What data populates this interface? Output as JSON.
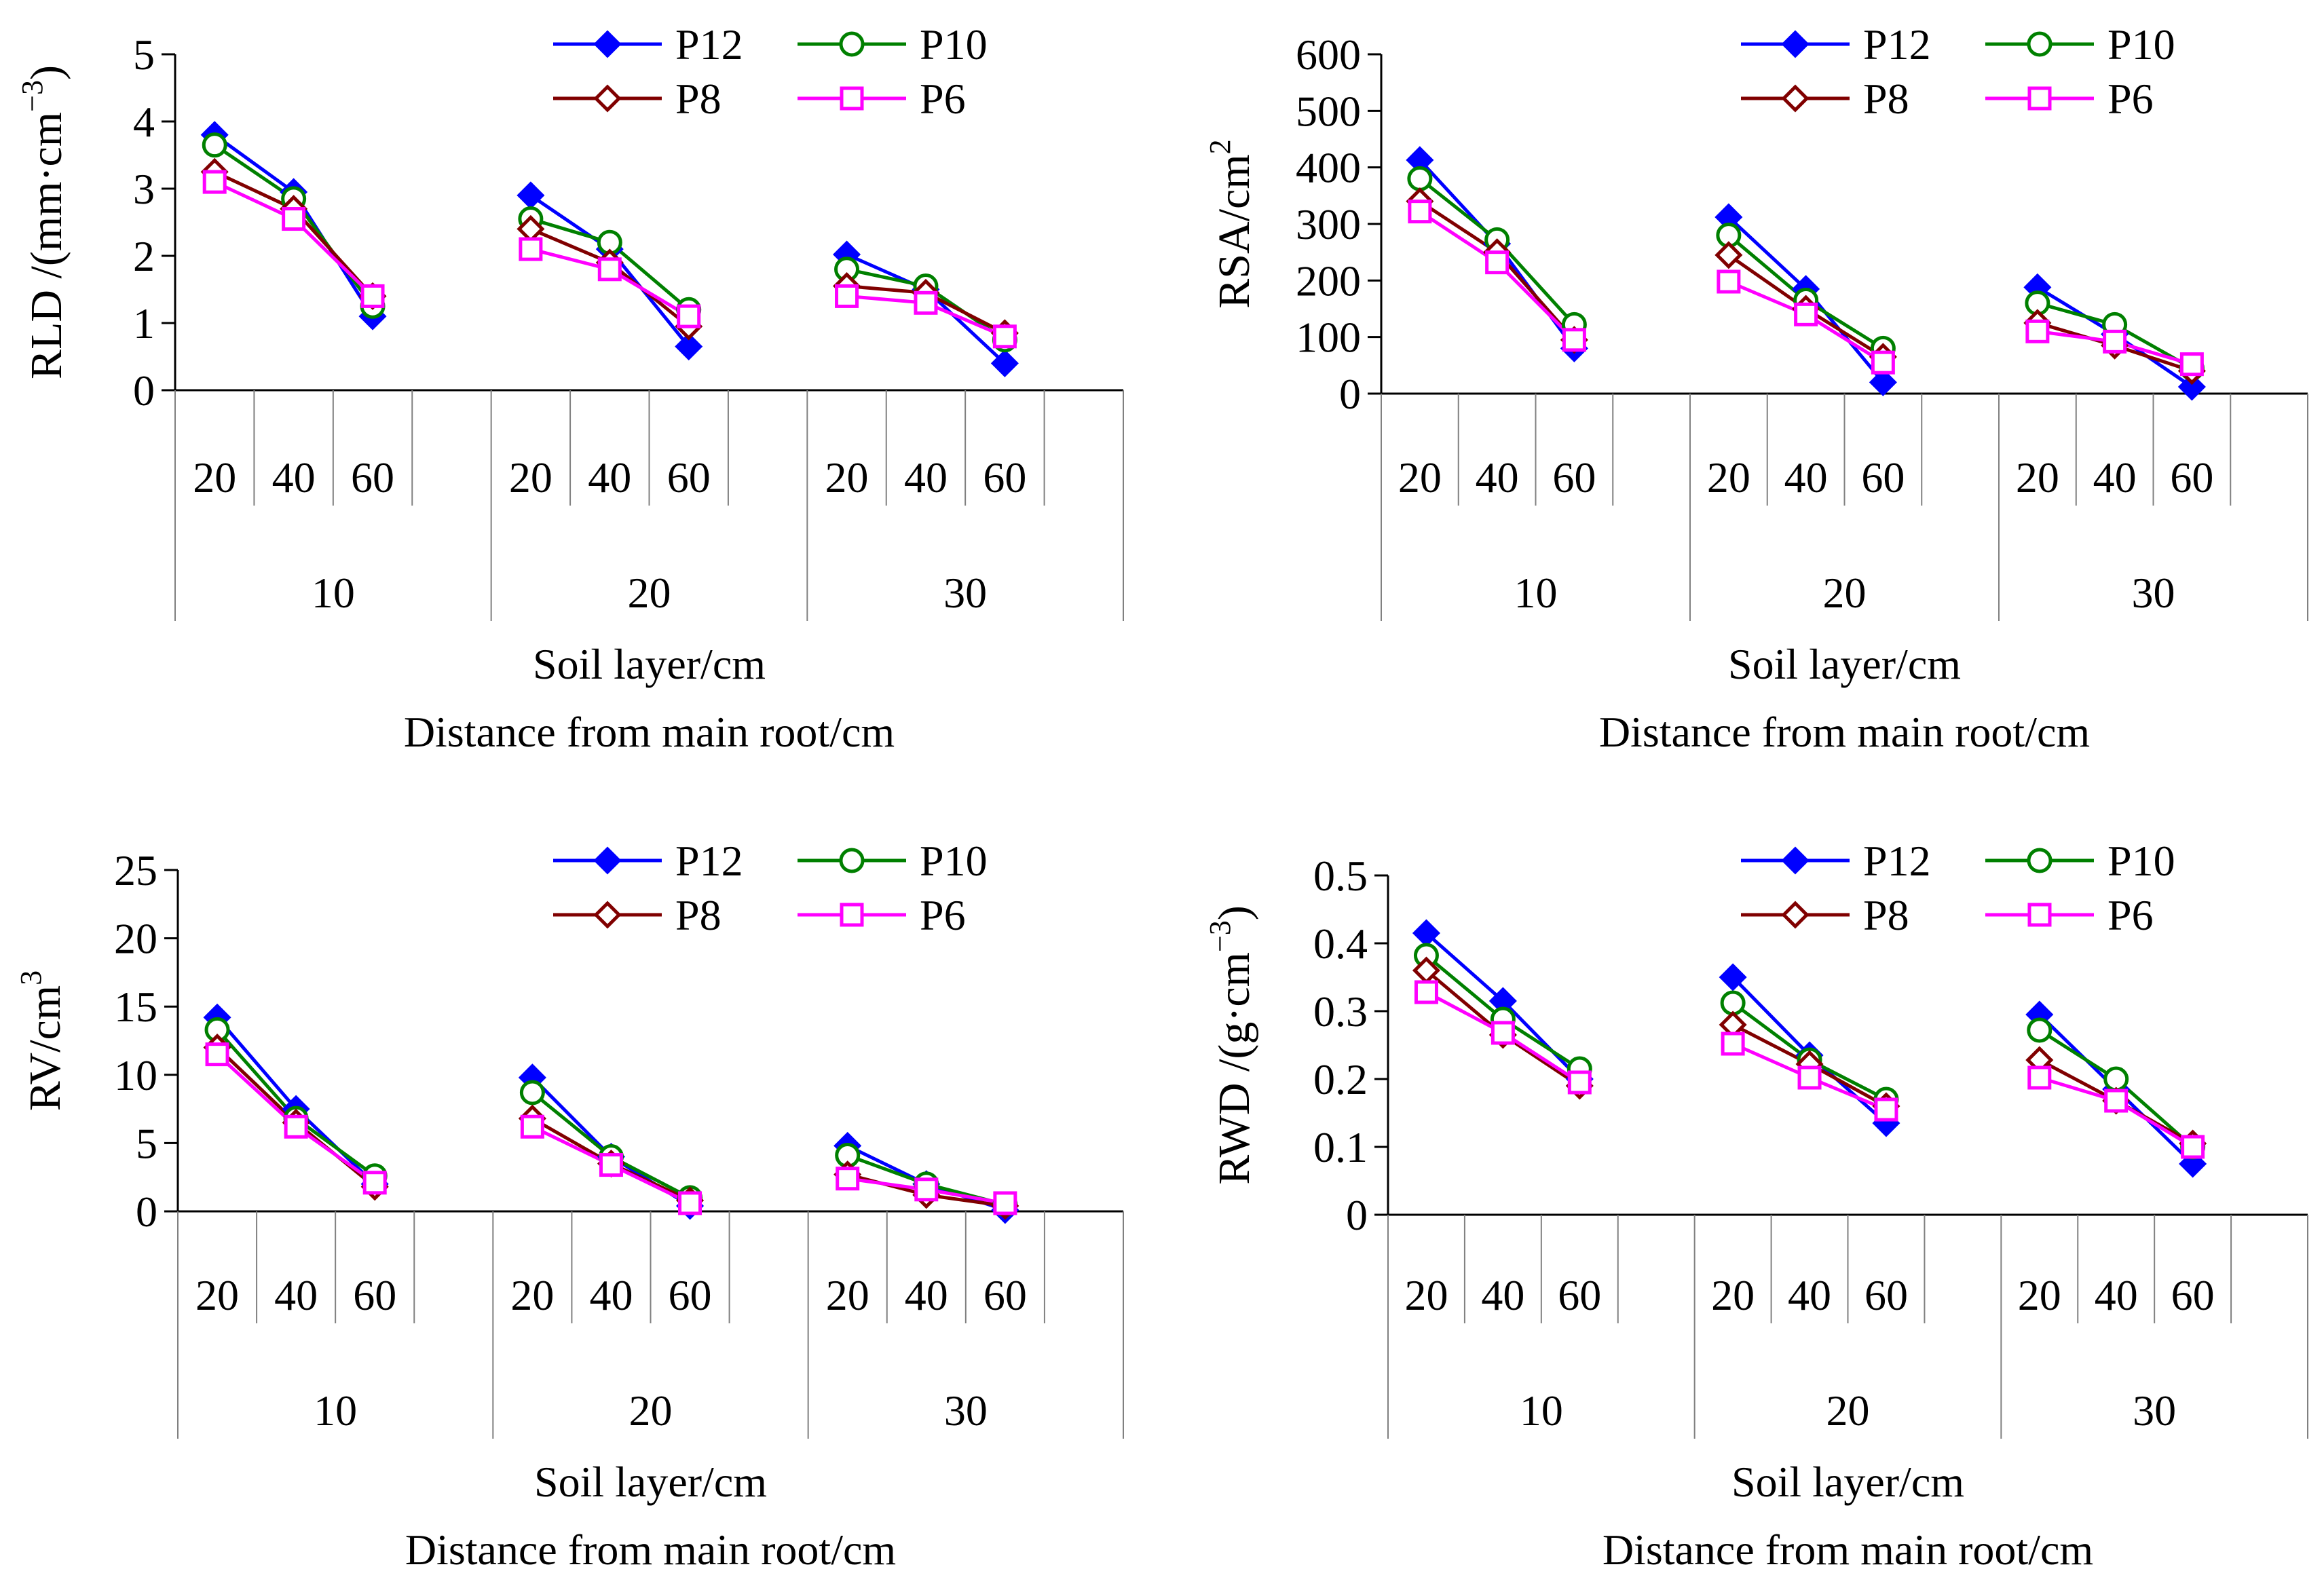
{
  "figure": {
    "panels_order": [
      "rld",
      "rsa",
      "rv",
      "rwd"
    ]
  },
  "chart_data": [
    {
      "id": "rld",
      "type": "line",
      "ylabel": "RLD /(mm·cm⁻³)",
      "ylabel_parts": {
        "main": "RLD /(mm·cm",
        "sup": "−3",
        "end": ")"
      },
      "ylim": [
        0,
        5
      ],
      "yticks": [
        0,
        1,
        2,
        3,
        4,
        5
      ],
      "ytick_labels": [
        "0",
        "1",
        "2",
        "3",
        "4",
        "5"
      ],
      "groups": [
        "10",
        "20",
        "30"
      ],
      "categories": [
        "20",
        "40",
        "60"
      ],
      "xlabel_1": "Soil layer/cm",
      "xlabel_2": "Distance from main root/cm",
      "series": [
        {
          "name": "P12",
          "values": [
            [
              3.8,
              2.95,
              1.1
            ],
            [
              2.9,
              2.1,
              0.65
            ],
            [
              2.02,
              1.5,
              0.4
            ]
          ]
        },
        {
          "name": "P10",
          "values": [
            [
              3.65,
              2.85,
              1.25
            ],
            [
              2.55,
              2.2,
              1.2
            ],
            [
              1.8,
              1.55,
              0.75
            ]
          ]
        },
        {
          "name": "P8",
          "values": [
            [
              3.25,
              2.7,
              1.4
            ],
            [
              2.4,
              1.9,
              0.95
            ],
            [
              1.55,
              1.45,
              0.85
            ]
          ]
        },
        {
          "name": "P6",
          "values": [
            [
              3.1,
              2.55,
              1.4
            ],
            [
              2.1,
              1.8,
              1.1
            ],
            [
              1.4,
              1.3,
              0.8
            ]
          ]
        }
      ]
    },
    {
      "id": "rsa",
      "type": "line",
      "ylabel": "RSA/cm²",
      "ylabel_parts": {
        "main": "RSA/cm",
        "sup": "2",
        "end": ""
      },
      "ylim": [
        0,
        600
      ],
      "yticks": [
        0,
        100,
        200,
        300,
        400,
        500,
        600
      ],
      "ytick_labels": [
        "0",
        "100",
        "200",
        "300",
        "400",
        "500",
        "600"
      ],
      "groups": [
        "10",
        "20",
        "30"
      ],
      "categories": [
        "20",
        "40",
        "60"
      ],
      "xlabel_1": "Soil layer/cm",
      "xlabel_2": "Distance from main root/cm",
      "series": [
        {
          "name": "P12",
          "values": [
            [
              413,
              265,
              80
            ],
            [
              312,
              185,
              20
            ],
            [
              188,
              105,
              12
            ]
          ]
        },
        {
          "name": "P10",
          "values": [
            [
              380,
              272,
              122
            ],
            [
              280,
              165,
              80
            ],
            [
              160,
              122,
              45
            ]
          ]
        },
        {
          "name": "P8",
          "values": [
            [
              340,
              250,
              95
            ],
            [
              245,
              150,
              65
            ],
            [
              125,
              85,
              40
            ]
          ]
        },
        {
          "name": "P6",
          "values": [
            [
              322,
              232,
              95
            ],
            [
              198,
              140,
              55
            ],
            [
              110,
              92,
              52
            ]
          ]
        }
      ]
    },
    {
      "id": "rv",
      "type": "line",
      "ylabel": "RV/cm³",
      "ylabel_parts": {
        "main": "RV/cm",
        "sup": "3",
        "end": ""
      },
      "ylim": [
        0,
        25
      ],
      "yticks": [
        0,
        5,
        10,
        15,
        20,
        25
      ],
      "ytick_labels": [
        "0",
        "5",
        "10",
        "15",
        "20",
        "25"
      ],
      "groups": [
        "10",
        "20",
        "30"
      ],
      "categories": [
        "20",
        "40",
        "60"
      ],
      "xlabel_1": "Soil layer/cm",
      "xlabel_2": "Distance from main root/cm",
      "series": [
        {
          "name": "P12",
          "values": [
            [
              14.2,
              7.5,
              2.0
            ],
            [
              9.8,
              4.0,
              0.4
            ],
            [
              4.8,
              2.0,
              0.1
            ]
          ]
        },
        {
          "name": "P10",
          "values": [
            [
              13.3,
              6.8,
              2.6
            ],
            [
              8.7,
              4.0,
              1.0
            ],
            [
              4.1,
              2.0,
              0.5
            ]
          ]
        },
        {
          "name": "P8",
          "values": [
            [
              12.0,
              6.5,
              1.8
            ],
            [
              6.8,
              3.5,
              0.8
            ],
            [
              2.7,
              1.2,
              0.4
            ]
          ]
        },
        {
          "name": "P6",
          "values": [
            [
              11.5,
              6.2,
              2.1
            ],
            [
              6.2,
              3.4,
              0.6
            ],
            [
              2.4,
              1.6,
              0.6
            ]
          ]
        }
      ]
    },
    {
      "id": "rwd",
      "type": "line",
      "ylabel": "RWD /(g·cm⁻³)",
      "ylabel_parts": {
        "main": "RWD /(g·cm",
        "sup": "−3",
        "end": ")"
      },
      "ylim": [
        0,
        0.5
      ],
      "yticks": [
        0,
        0.1,
        0.2,
        0.3,
        0.4,
        0.5
      ],
      "ytick_labels": [
        "0",
        "0.1",
        "0.2",
        "0.3",
        "0.4",
        "0.5"
      ],
      "groups": [
        "10",
        "20",
        "30"
      ],
      "categories": [
        "20",
        "40",
        "60"
      ],
      "xlabel_1": "Soil layer/cm",
      "xlabel_2": "Distance from main root/cm",
      "series": [
        {
          "name": "P12",
          "values": [
            [
              0.415,
              0.315,
              0.2
            ],
            [
              0.35,
              0.235,
              0.135
            ],
            [
              0.295,
              0.185,
              0.075
            ]
          ]
        },
        {
          "name": "P10",
          "values": [
            [
              0.382,
              0.288,
              0.215
            ],
            [
              0.312,
              0.228,
              0.17
            ],
            [
              0.272,
              0.2,
              0.1
            ]
          ]
        },
        {
          "name": "P8",
          "values": [
            [
              0.36,
              0.265,
              0.19
            ],
            [
              0.28,
              0.222,
              0.16
            ],
            [
              0.228,
              0.168,
              0.105
            ]
          ]
        },
        {
          "name": "P6",
          "values": [
            [
              0.328,
              0.268,
              0.195
            ],
            [
              0.252,
              0.202,
              0.155
            ],
            [
              0.202,
              0.168,
              0.1
            ]
          ]
        }
      ]
    }
  ],
  "legend": {
    "items": [
      {
        "name": "P12",
        "color": "#0000ff",
        "marker": "diamond-filled"
      },
      {
        "name": "P10",
        "color": "#008000",
        "marker": "circle-open"
      },
      {
        "name": "P8",
        "color": "#800000",
        "marker": "diamond-open"
      },
      {
        "name": "P6",
        "color": "#ff00ff",
        "marker": "square-open"
      }
    ]
  },
  "colors": {
    "P12": "#0000ff",
    "P10": "#008000",
    "P8": "#800000",
    "P6": "#ff00ff",
    "axis": "#000000",
    "divider": "#808080"
  }
}
